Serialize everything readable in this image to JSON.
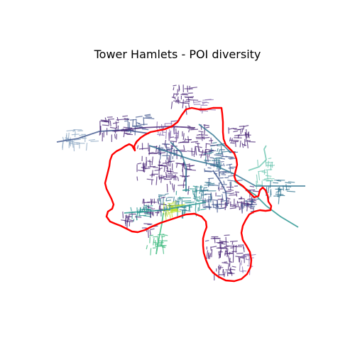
{
  "title": "Tower Hamlets - POI diversity",
  "colors": {
    "boundary": "#ff0000",
    "low": "#482475",
    "low_mid": "#3b528b",
    "mid": "#2c728e",
    "mid_high": "#21918c",
    "high": "#35b779",
    "highest": "#bddf26",
    "pale_blue": "#8fa9c4",
    "pale_teal": "#6cc5b0",
    "pale_purple": "#8b6fb0"
  },
  "map": {
    "type": "street-network-choropleth",
    "colormap": "viridis",
    "boundary_name": "Tower Hamlets"
  }
}
